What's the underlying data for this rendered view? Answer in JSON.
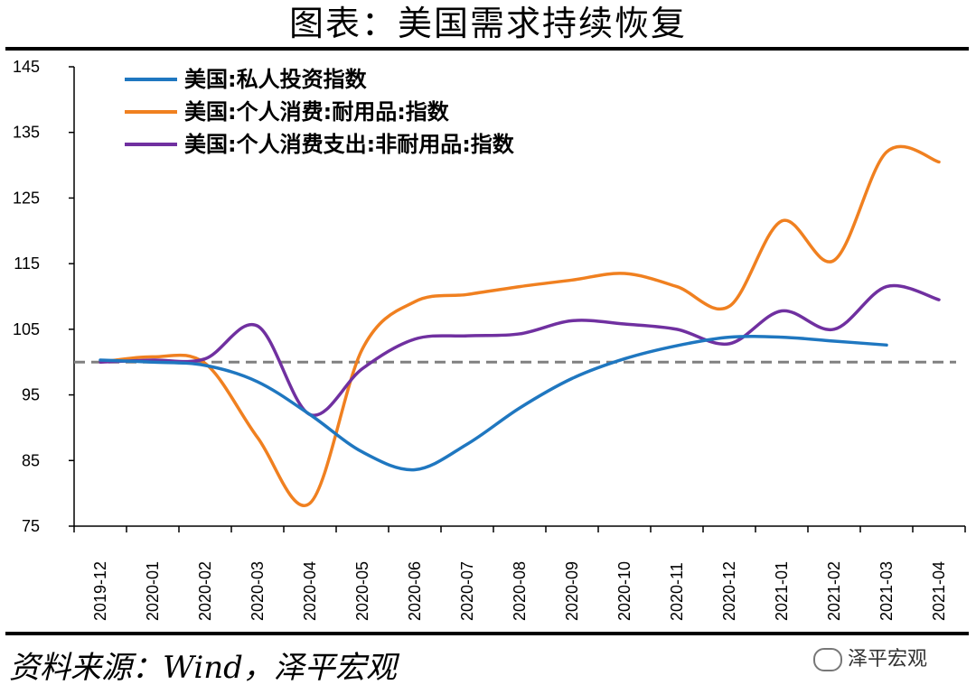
{
  "title": "图表：美国需求持续恢复",
  "source": "资料来源：Wind，泽平宏观",
  "brand": "泽平宏观",
  "chart_data": {
    "type": "line",
    "title": "图表：美国需求持续恢复",
    "xlabel": "",
    "ylabel": "",
    "ylim": [
      75,
      145
    ],
    "yticks": [
      75,
      85,
      95,
      105,
      115,
      125,
      135,
      145
    ],
    "categories": [
      "2019-12",
      "2020-01",
      "2020-02",
      "2020-03",
      "2020-04",
      "2020-05",
      "2020-06",
      "2020-07",
      "2020-08",
      "2020-09",
      "2020-10",
      "2020-11",
      "2020-12",
      "2021-01",
      "2021-02",
      "2021-03",
      "2021-04"
    ],
    "reference_line": 100,
    "legend_position": "top-left",
    "series": [
      {
        "name": "美国:私人投资指数",
        "color": "#1f77c0",
        "values": [
          100.3,
          100.0,
          99.5,
          97.0,
          92.0,
          86.3,
          83.6,
          87.5,
          93.0,
          97.5,
          100.5,
          102.5,
          103.8,
          103.8,
          103.2,
          102.6,
          null
        ]
      },
      {
        "name": "美国:个人消费:耐用品:指数",
        "color": "#f08020",
        "values": [
          100.0,
          100.8,
          99.8,
          88.5,
          78.5,
          102.0,
          109.2,
          110.3,
          111.5,
          112.5,
          113.5,
          111.5,
          108.5,
          121.5,
          115.5,
          132.0,
          130.5
        ]
      },
      {
        "name": "美国:个人消费支出:非耐用品:指数",
        "color": "#7030a0",
        "values": [
          100.0,
          100.3,
          100.5,
          105.5,
          92.0,
          99.0,
          103.5,
          104.0,
          104.3,
          106.3,
          105.8,
          105.0,
          102.8,
          107.8,
          105.0,
          111.5,
          109.5
        ]
      }
    ]
  }
}
